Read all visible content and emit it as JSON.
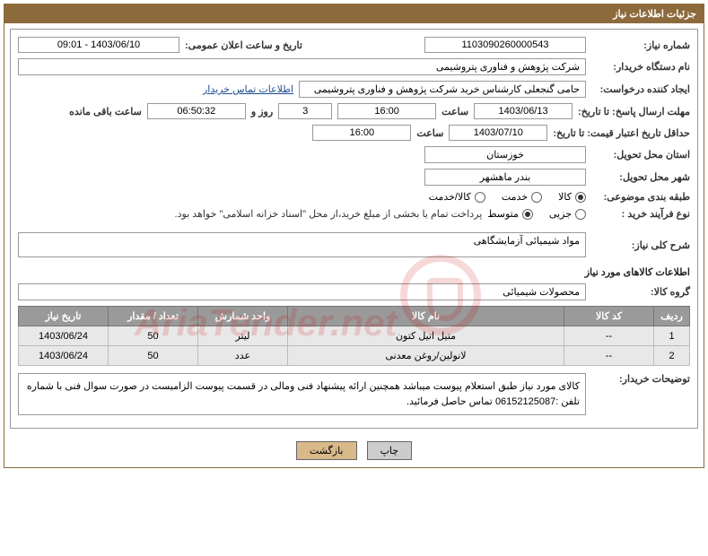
{
  "header": {
    "title": "جزئیات اطلاعات نیاز"
  },
  "fields": {
    "requestNumber": {
      "label": "شماره نیاز:",
      "value": "1103090260000543"
    },
    "announceDate": {
      "label": "تاریخ و ساعت اعلان عمومی:",
      "value": "1403/06/10 - 09:01"
    },
    "buyerOrg": {
      "label": "نام دستگاه خریدار:",
      "value": "شرکت پژوهش و فناوری پتروشیمی"
    },
    "requester": {
      "label": "ایجاد کننده درخواست:",
      "value": "حامی گنجعلی کارشناس خرید شرکت پژوهش و فناوری پتروشیمی"
    },
    "contactLink": "اطلاعات تماس خریدار",
    "responseDeadline": {
      "label": "مهلت ارسال پاسخ: تا تاریخ:",
      "date": "1403/06/13",
      "timeLabel": "ساعت",
      "time": "16:00",
      "daysValue": "3",
      "daysLabel": "روز و",
      "remaining": "06:50:32",
      "remainingLabel": "ساعت باقی مانده"
    },
    "priceValidity": {
      "label": "حداقل تاریخ اعتبار قیمت: تا تاریخ:",
      "date": "1403/07/10",
      "timeLabel": "ساعت",
      "time": "16:00"
    },
    "deliveryProvince": {
      "label": "استان محل تحویل:",
      "value": "خوزستان"
    },
    "deliveryCity": {
      "label": "شهر محل تحویل:",
      "value": "بندر ماهشهر"
    },
    "subjectCategory": {
      "label": "طبقه بندی موضوعی:",
      "options": [
        {
          "label": "کالا",
          "checked": true
        },
        {
          "label": "خدمت",
          "checked": false
        },
        {
          "label": "کالا/خدمت",
          "checked": false
        }
      ]
    },
    "purchaseProcess": {
      "label": "نوع فرآیند خرید :",
      "options": [
        {
          "label": "جزیی",
          "checked": false
        },
        {
          "label": "متوسط",
          "checked": true
        }
      ],
      "note": "پرداخت تمام یا بخشی از مبلغ خرید،از محل \"اسناد خزانه اسلامی\" خواهد بود."
    },
    "generalDesc": {
      "label": "شرح کلی نیاز:",
      "value": "مواد شیمیائی آزمایشگاهی"
    },
    "goodsInfoTitle": "اطلاعات کالاهای مورد نیاز",
    "goodsGroup": {
      "label": "گروه کالا:",
      "value": "محصولات شیمیائی"
    },
    "explanation": {
      "label": "توضیحات خریدار:",
      "text": "کالای مورد نیاز طبق استعلام پیوست میباشد همچنین ارائه پیشنهاد فنی ومالی در قسمت پیوست الزامیست در صورت سوال فنی با شماره تلفن :06152125087 تماس حاصل فرمائید."
    }
  },
  "table": {
    "headers": [
      "ردیف",
      "کد کالا",
      "نام کالا",
      "واحد شمارش",
      "تعداد / مقدار",
      "تاریخ نیاز"
    ],
    "rows": [
      [
        "1",
        "--",
        "متیل اتیل کتون",
        "لیتر",
        "50",
        "1403/06/24"
      ],
      [
        "2",
        "--",
        "لانولین/روغن معدنی",
        "عدد",
        "50",
        "1403/06/24"
      ]
    ]
  },
  "buttons": {
    "print": "چاپ",
    "back": "بازگشت"
  },
  "watermark": "AriaTender.net"
}
